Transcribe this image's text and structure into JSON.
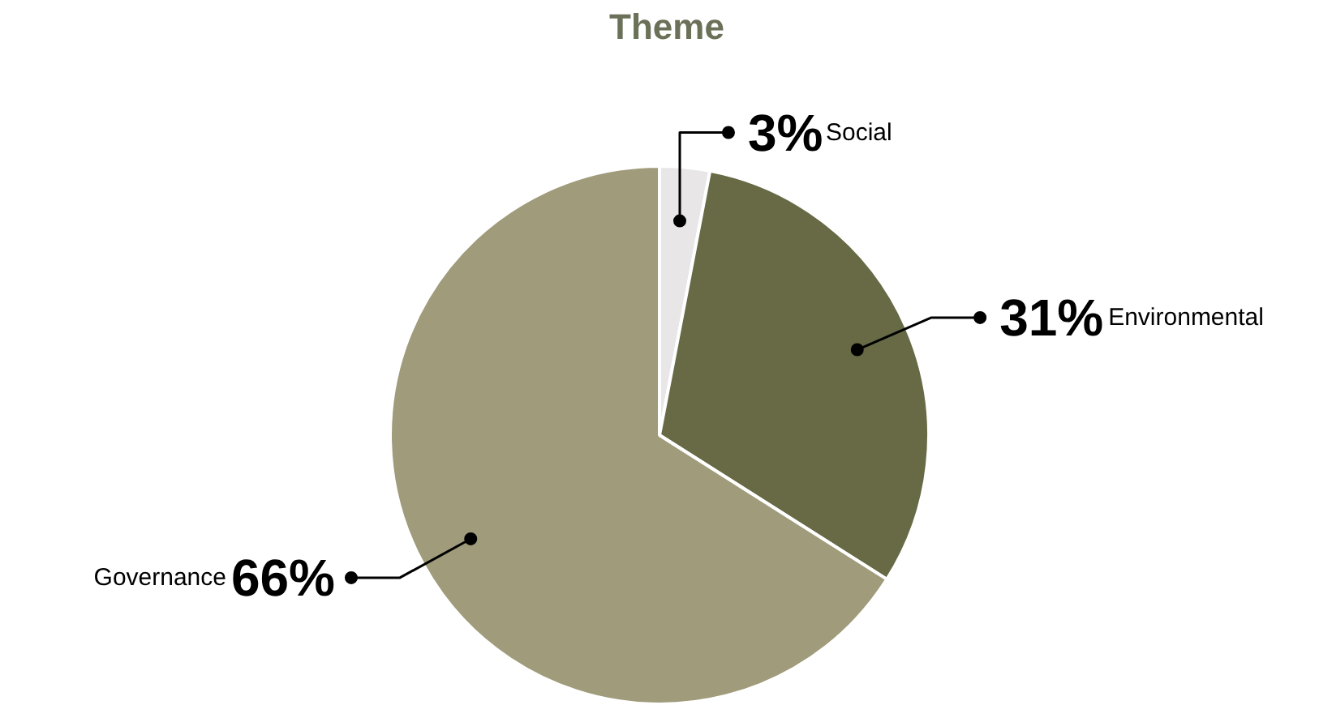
{
  "chart_data": {
    "type": "pie",
    "title": "Theme",
    "categories": [
      "Social",
      "Environmental",
      "Governance"
    ],
    "values": [
      3,
      31,
      66
    ],
    "colors": [
      "#e8e6e6",
      "#676a45",
      "#9f9b7b"
    ],
    "value_labels": [
      "3%",
      "31%",
      "66%"
    ]
  }
}
